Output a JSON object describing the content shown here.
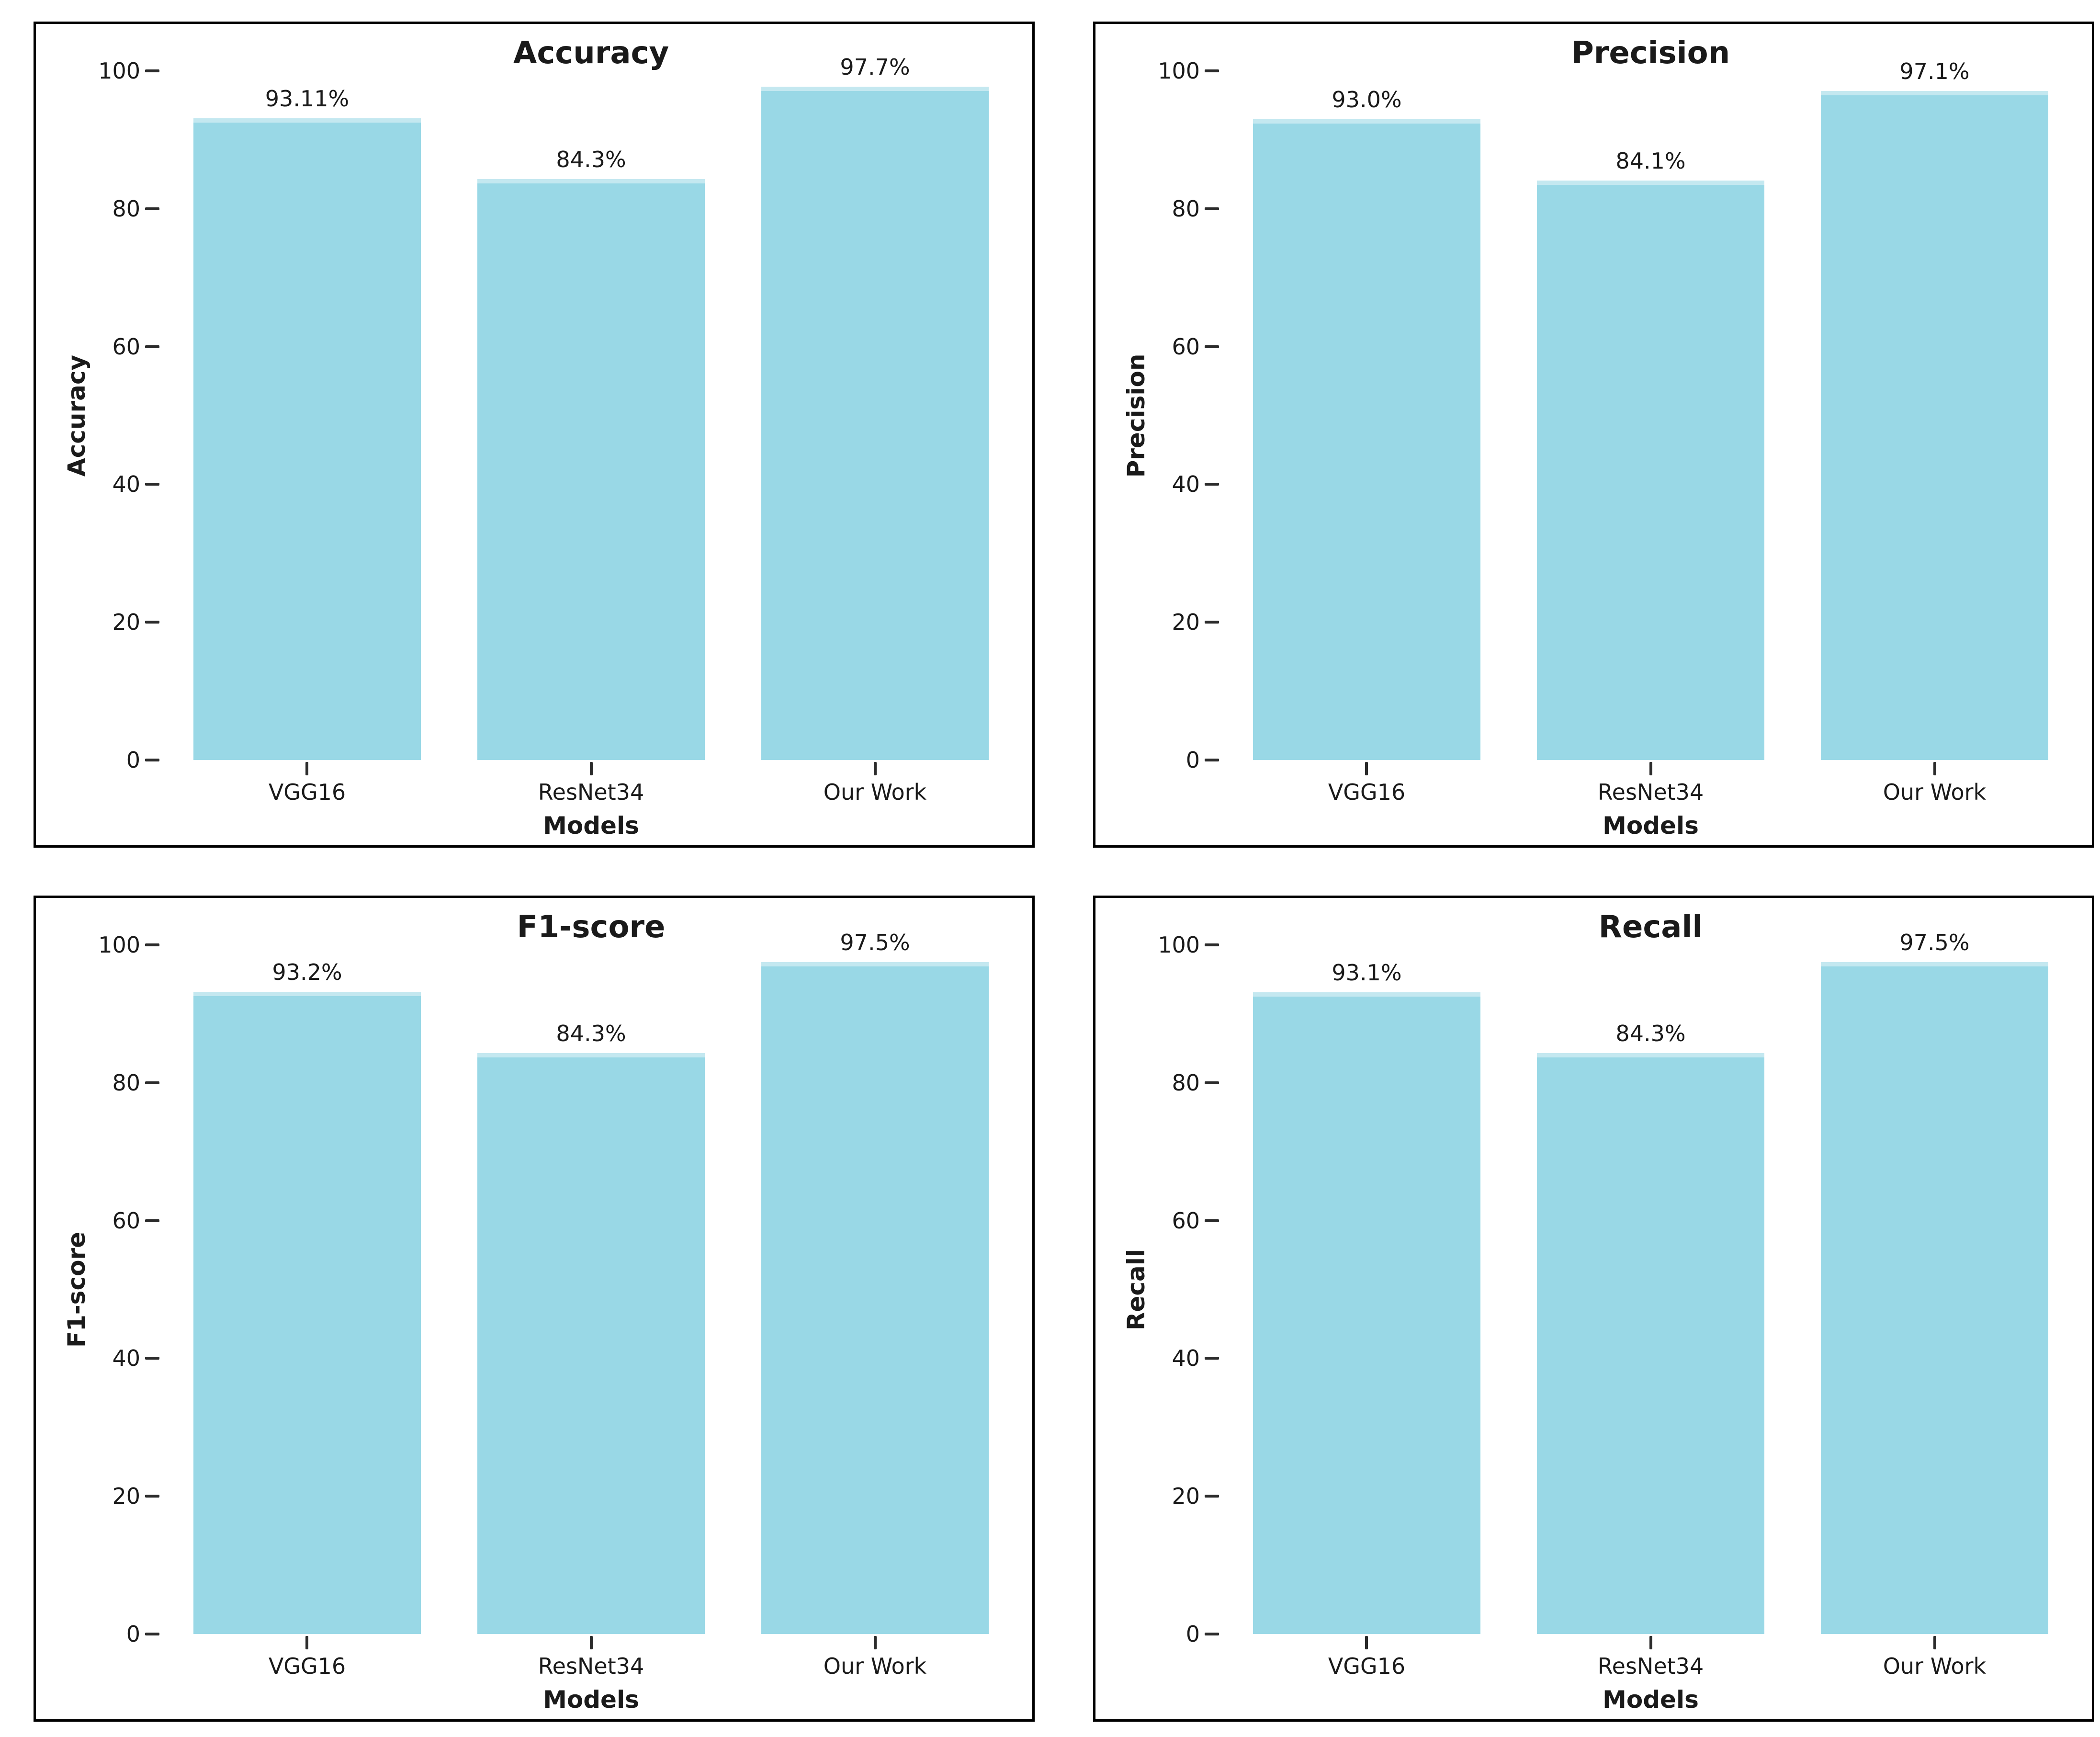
{
  "page": {
    "background": "#ffffff",
    "panel_border_color": "#000000",
    "text_color": "#1a1a1a",
    "tick_color": "#2b2b2b"
  },
  "chart_data": [
    {
      "type": "bar",
      "title": "Accuracy",
      "xlabel": "Models",
      "ylabel": "Accuracy",
      "categories": [
        "VGG16",
        "ResNet34",
        "Our Work"
      ],
      "values": [
        93.11,
        84.3,
        97.7
      ],
      "value_labels": [
        "93.11%",
        "84.3%",
        "97.7%"
      ],
      "yticks": [
        0,
        20,
        40,
        60,
        80,
        100
      ],
      "ylim": [
        0,
        100
      ],
      "bar_color": "#99D8E6",
      "grid": false,
      "legend": "none"
    },
    {
      "type": "bar",
      "title": "Precision",
      "xlabel": "Models",
      "ylabel": "Precision",
      "categories": [
        "VGG16",
        "ResNet34",
        "Our Work"
      ],
      "values": [
        93.0,
        84.1,
        97.1
      ],
      "value_labels": [
        "93.0%",
        "84.1%",
        "97.1%"
      ],
      "yticks": [
        0,
        20,
        40,
        60,
        80,
        100
      ],
      "ylim": [
        0,
        100
      ],
      "bar_color": "#99D8E6",
      "grid": false,
      "legend": "none"
    },
    {
      "type": "bar",
      "title": "F1-score",
      "xlabel": "Models",
      "ylabel": "F1-score",
      "categories": [
        "VGG16",
        "ResNet34",
        "Our Work"
      ],
      "values": [
        93.2,
        84.3,
        97.5
      ],
      "value_labels": [
        "93.2%",
        "84.3%",
        "97.5%"
      ],
      "yticks": [
        0,
        20,
        40,
        60,
        80,
        100
      ],
      "ylim": [
        0,
        100
      ],
      "bar_color": "#99D8E6",
      "grid": false,
      "legend": "none"
    },
    {
      "type": "bar",
      "title": "Recall",
      "xlabel": "Models",
      "ylabel": "Recall",
      "categories": [
        "VGG16",
        "ResNet34",
        "Our Work"
      ],
      "values": [
        93.1,
        84.3,
        97.5
      ],
      "value_labels": [
        "93.1%",
        "84.3%",
        "97.5%"
      ],
      "yticks": [
        0,
        20,
        40,
        60,
        80,
        100
      ],
      "ylim": [
        0,
        100
      ],
      "bar_color": "#99D8E6",
      "grid": false,
      "legend": "none"
    }
  ]
}
